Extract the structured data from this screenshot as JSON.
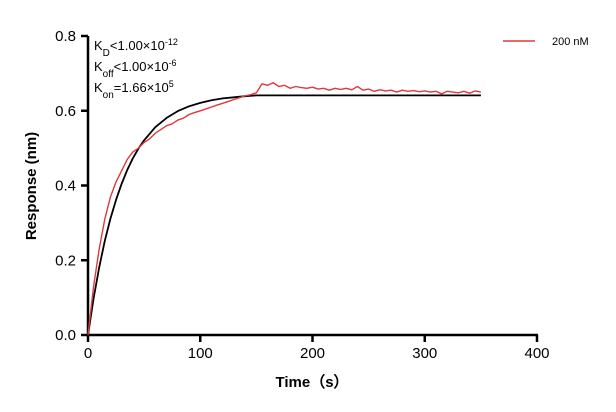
{
  "chart_data": {
    "type": "line",
    "xlabel": "Time（s）",
    "ylabel": "Response (nm)",
    "xlim": [
      0,
      400
    ],
    "ylim": [
      0,
      0.8
    ],
    "xticks": [
      0,
      100,
      200,
      300,
      400
    ],
    "yticks": [
      "0.0",
      "0.2",
      "0.4",
      "0.6",
      "0.8"
    ],
    "grid": false,
    "legend_position": "top-right",
    "annotations": [
      {
        "base": "K",
        "sub": "D",
        "rel": "<1.00×10",
        "sup": "-12"
      },
      {
        "base": "K",
        "sub": "off",
        "rel": "<1.00×10",
        "sup": "-6"
      },
      {
        "base": "K",
        "sub": "on",
        "rel": "=1.66×10",
        "sup": "5"
      }
    ],
    "series": [
      {
        "name": "200 nM",
        "color": "#e0383c",
        "x": [
          0,
          5,
          10,
          15,
          20,
          25,
          30,
          35,
          40,
          45,
          50,
          55,
          60,
          65,
          70,
          75,
          80,
          85,
          90,
          95,
          100,
          105,
          110,
          115,
          120,
          125,
          130,
          135,
          140,
          145,
          150,
          155,
          160,
          165,
          170,
          175,
          180,
          185,
          190,
          195,
          200,
          205,
          210,
          215,
          220,
          225,
          230,
          235,
          240,
          245,
          250,
          255,
          260,
          265,
          270,
          275,
          280,
          285,
          290,
          295,
          300,
          305,
          310,
          315,
          320,
          325,
          330,
          335,
          340,
          345,
          350
        ],
        "y": [
          0,
          0.13,
          0.23,
          0.31,
          0.37,
          0.41,
          0.44,
          0.47,
          0.49,
          0.5,
          0.515,
          0.525,
          0.54,
          0.55,
          0.56,
          0.565,
          0.575,
          0.58,
          0.59,
          0.595,
          0.6,
          0.605,
          0.61,
          0.615,
          0.62,
          0.625,
          0.63,
          0.635,
          0.64,
          0.643,
          0.648,
          0.672,
          0.668,
          0.675,
          0.665,
          0.668,
          0.66,
          0.665,
          0.662,
          0.66,
          0.663,
          0.658,
          0.66,
          0.655,
          0.66,
          0.657,
          0.66,
          0.656,
          0.665,
          0.655,
          0.658,
          0.652,
          0.656,
          0.653,
          0.655,
          0.65,
          0.655,
          0.652,
          0.654,
          0.651,
          0.653,
          0.65,
          0.652,
          0.645,
          0.652,
          0.65,
          0.648,
          0.652,
          0.647,
          0.653,
          0.65
        ]
      },
      {
        "color": "#000000",
        "x": [
          0,
          5,
          10,
          15,
          20,
          25,
          30,
          35,
          40,
          45,
          50,
          60,
          70,
          80,
          90,
          100,
          110,
          120,
          130,
          140,
          150,
          350
        ],
        "y": [
          0,
          0.098,
          0.181,
          0.252,
          0.312,
          0.362,
          0.405,
          0.442,
          0.473,
          0.499,
          0.521,
          0.556,
          0.581,
          0.599,
          0.612,
          0.621,
          0.628,
          0.633,
          0.636,
          0.639,
          0.641,
          0.641
        ]
      }
    ]
  }
}
